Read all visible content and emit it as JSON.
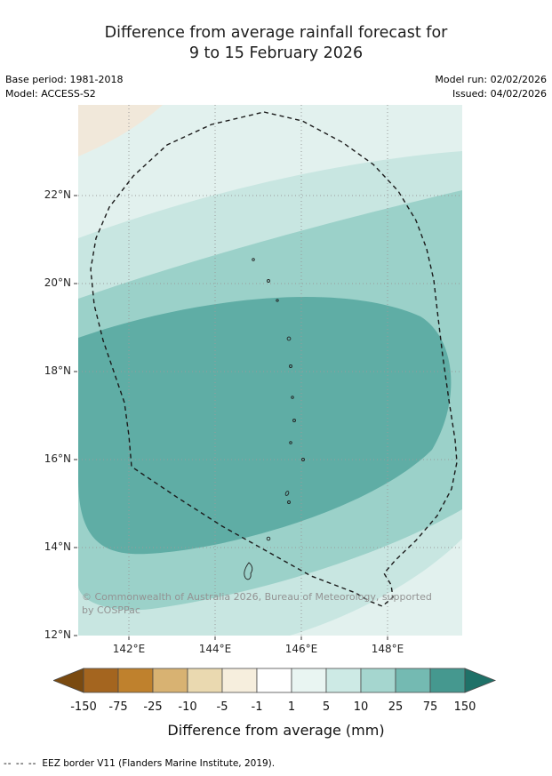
{
  "title": {
    "line1": "Difference from average rainfall forecast for",
    "line2": "9 to 15 February 2026"
  },
  "meta": {
    "base_period": "Base period: 1981-2018",
    "model": "Model: ACCESS-S2",
    "model_run": "Model run: 02/02/2026",
    "issued": "Issued: 04/02/2026"
  },
  "map": {
    "y_ticks": [
      "22°N",
      "20°N",
      "18°N",
      "16°N",
      "14°N",
      "12°N"
    ],
    "x_ticks": [
      "142°E",
      "144°E",
      "146°E",
      "148°E"
    ],
    "copyright": {
      "line1": "© Commonwealth of Australia 2026, Bureau of Meteorology, supported",
      "line2": "by COSPPac"
    },
    "fills": {
      "base": "#c8e6e1",
      "lightest": "#e2f1ee",
      "beige": "#f1e8da",
      "medium": "#9bd1c9",
      "dark": "#5fada5"
    },
    "eez_border_color": "#1a1a1a"
  },
  "colorbar": {
    "label": "Difference from average (mm)",
    "tick_labels": [
      "-150",
      "-75",
      "-25",
      "-10",
      "-5",
      "-1",
      "1",
      "5",
      "10",
      "25",
      "75",
      "150"
    ],
    "segment_colors": [
      "#a4651f",
      "#bf812d",
      "#d8b272",
      "#ead9b0",
      "#f6eedd",
      "#ffffff",
      "#e9f5f2",
      "#cdeae5",
      "#a5d6cf",
      "#74bab2",
      "#45988f"
    ],
    "arrow_left_color": "#7a4a10",
    "arrow_right_color": "#1f7168"
  },
  "footnote": {
    "dashes": "--  --  --",
    "text": "EEZ border V11 (Flanders Marine Institute, 2019)."
  }
}
